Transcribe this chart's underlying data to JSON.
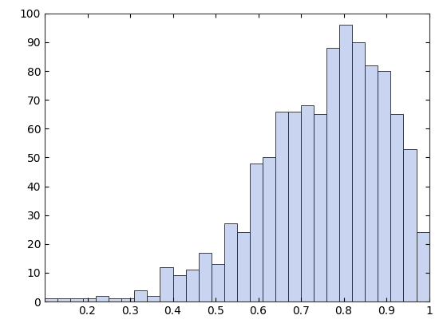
{
  "bar_heights": [
    1,
    1,
    1,
    1,
    2,
    1,
    1,
    4,
    2,
    12,
    9,
    11,
    17,
    13,
    27,
    24,
    48,
    50,
    66,
    66,
    68,
    65,
    88,
    96,
    90,
    82,
    80,
    65,
    53,
    24
  ],
  "bar_color": "#c8d4f0",
  "bar_edge_color": "#222222",
  "xlim": [
    0.1,
    1.0
  ],
  "ylim": [
    0,
    100
  ],
  "xticks": [
    0.1,
    0.2,
    0.3,
    0.4,
    0.5,
    0.6,
    0.7,
    0.8,
    0.9,
    1.0
  ],
  "xticklabels": [
    "",
    "0.2",
    "0.3",
    "0.4",
    "0.5",
    "0.6",
    "0.7",
    "0.8",
    "0.9",
    "1"
  ],
  "yticks": [
    0,
    10,
    20,
    30,
    40,
    50,
    60,
    70,
    80,
    90,
    100
  ],
  "figsize": [
    5.6,
    4.2
  ],
  "dpi": 100
}
